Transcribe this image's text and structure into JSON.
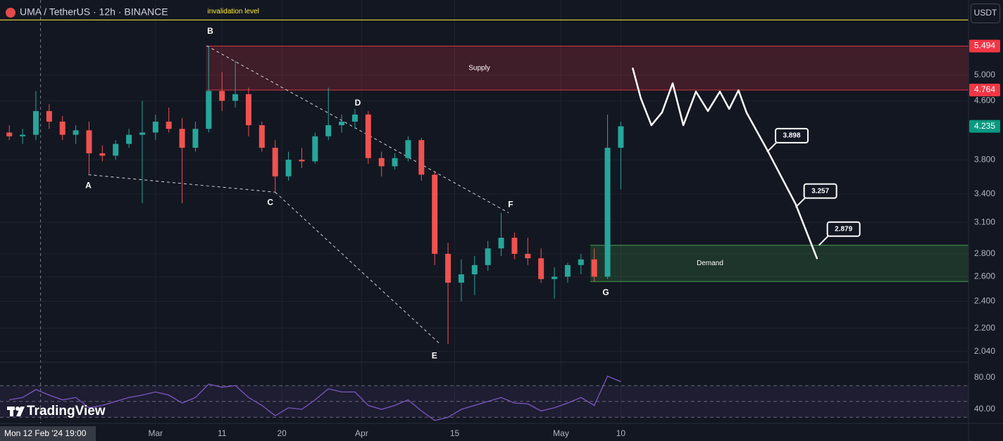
{
  "header": {
    "symbol": "UMA / TetherUS · 12h · BINANCE",
    "currency_button": "USDT",
    "logo": "TradingView",
    "crosshair_label": "Mon 12 Feb '24 19:00"
  },
  "chart_data": {
    "type": "candlestick",
    "log_scale": true,
    "grid": true,
    "up_color": "#26a69a",
    "down_color": "#ef5350",
    "x": [
      7,
      9,
      11,
      13,
      15,
      17,
      19,
      21,
      23,
      25,
      27,
      29,
      31,
      33,
      35,
      37,
      39,
      41,
      43,
      45,
      47,
      49,
      51,
      53,
      55,
      57,
      59,
      61,
      63,
      65,
      67,
      69,
      71,
      73,
      75,
      77,
      79,
      81,
      83,
      85,
      87,
      89,
      91,
      93,
      95,
      97,
      99
    ],
    "values": [
      [
        4.15,
        4.25,
        4.05,
        4.1
      ],
      [
        4.1,
        4.2,
        4.0,
        4.12
      ],
      [
        4.12,
        4.75,
        4.05,
        4.45
      ],
      [
        4.45,
        4.55,
        4.2,
        4.3
      ],
      [
        4.3,
        4.38,
        4.05,
        4.12
      ],
      [
        4.12,
        4.25,
        4.0,
        4.18
      ],
      [
        4.18,
        4.3,
        3.62,
        3.88
      ],
      [
        3.88,
        3.98,
        3.78,
        3.85
      ],
      [
        3.85,
        4.05,
        3.8,
        4.0
      ],
      [
        4.0,
        4.2,
        3.95,
        4.12
      ],
      [
        4.12,
        4.6,
        3.3,
        4.15
      ],
      [
        4.15,
        4.4,
        4.05,
        4.3
      ],
      [
        4.3,
        4.5,
        4.15,
        4.2
      ],
      [
        4.2,
        4.35,
        3.3,
        3.95
      ],
      [
        3.95,
        4.3,
        3.9,
        4.2
      ],
      [
        4.2,
        5.5,
        4.15,
        4.75
      ],
      [
        4.75,
        5.05,
        4.45,
        4.6
      ],
      [
        4.6,
        5.24,
        4.5,
        4.7
      ],
      [
        4.7,
        4.8,
        4.1,
        4.25
      ],
      [
        4.25,
        4.3,
        3.9,
        3.95
      ],
      [
        3.95,
        4.05,
        3.42,
        3.6
      ],
      [
        3.6,
        3.9,
        3.55,
        3.8
      ],
      [
        3.8,
        3.95,
        3.7,
        3.78
      ],
      [
        3.78,
        4.15,
        3.75,
        4.1
      ],
      [
        4.1,
        4.8,
        4.05,
        4.25
      ],
      [
        4.25,
        4.4,
        4.15,
        4.3
      ],
      [
        4.3,
        4.48,
        4.2,
        4.4
      ],
      [
        4.4,
        4.45,
        3.75,
        3.82
      ],
      [
        3.82,
        3.9,
        3.6,
        3.72
      ],
      [
        3.72,
        3.88,
        3.68,
        3.82
      ],
      [
        3.82,
        4.1,
        3.78,
        4.05
      ],
      [
        4.05,
        4.08,
        3.55,
        3.62
      ],
      [
        3.62,
        3.65,
        2.7,
        2.8
      ],
      [
        2.8,
        2.9,
        2.09,
        2.55
      ],
      [
        2.55,
        2.75,
        2.4,
        2.62
      ],
      [
        2.62,
        2.78,
        2.45,
        2.7
      ],
      [
        2.7,
        2.92,
        2.65,
        2.85
      ],
      [
        2.85,
        3.2,
        2.78,
        2.95
      ],
      [
        2.95,
        3.0,
        2.75,
        2.8
      ],
      [
        2.8,
        2.95,
        2.7,
        2.76
      ],
      [
        2.76,
        2.85,
        2.55,
        2.58
      ],
      [
        2.58,
        2.68,
        2.42,
        2.6
      ],
      [
        2.6,
        2.72,
        2.55,
        2.7
      ],
      [
        2.7,
        2.8,
        2.62,
        2.75
      ],
      [
        2.75,
        2.85,
        2.56,
        2.6
      ],
      [
        2.6,
        4.4,
        2.58,
        3.95
      ],
      [
        3.95,
        4.3,
        3.45,
        4.235
      ]
    ],
    "xlim": [
      5.6,
      151.3
    ],
    "xticks": [
      {
        "value": 29,
        "label": "Mar"
      },
      {
        "value": 39,
        "label": "11"
      },
      {
        "value": 48,
        "label": "20"
      },
      {
        "value": 60,
        "label": "Apr"
      },
      {
        "value": 74,
        "label": "15"
      },
      {
        "value": 90,
        "label": "May"
      },
      {
        "value": 99,
        "label": "10"
      }
    ],
    "ylim": [
      1.97,
      6.38
    ],
    "yticks": [
      {
        "value": 2.04,
        "label": "2.040"
      },
      {
        "value": 2.2,
        "label": "2.200"
      },
      {
        "value": 2.4,
        "label": "2.400"
      },
      {
        "value": 2.6,
        "label": "2.600"
      },
      {
        "value": 2.8,
        "label": "2.800"
      },
      {
        "value": 3.1,
        "label": "3.100"
      },
      {
        "value": 3.4,
        "label": "3.400"
      },
      {
        "value": 3.8,
        "label": "3.800"
      },
      {
        "value": 4.6,
        "label": "4.600"
      },
      {
        "value": 5,
        "label": "5.000"
      }
    ],
    "crosshair_x": 11.7,
    "rsi": {
      "color": "#7e57c2",
      "values": [
        52,
        55,
        65,
        58,
        52,
        55,
        42,
        45,
        50,
        55,
        58,
        62,
        58,
        48,
        55,
        72,
        68,
        70,
        55,
        45,
        32,
        42,
        40,
        52,
        66,
        62,
        62,
        45,
        40,
        45,
        52,
        38,
        26,
        30,
        40,
        45,
        50,
        55,
        48,
        47,
        38,
        42,
        48,
        55,
        45,
        82,
        75
      ],
      "ylim": [
        24,
        99.6
      ],
      "yticks": [
        {
          "value": 80,
          "label": "80.00"
        },
        {
          "value": 40,
          "label": "40.00"
        }
      ],
      "levels": [
        70,
        50,
        30
      ]
    },
    "zones": [
      {
        "label": "Supply",
        "top": 5.494,
        "bottom": 4.764,
        "x_start": 36.6,
        "color": "#f23645"
      },
      {
        "label": "Demand",
        "top": 2.879,
        "bottom": 2.56,
        "x_start": 94.4,
        "color": "#4caf50"
      }
    ],
    "invalidation": {
      "label": "invalidation level",
      "value": 5.98,
      "color": "#ffeb3b"
    },
    "wave_points": [
      {
        "label": "A",
        "x": 18.9,
        "y": 3.62
      },
      {
        "label": "B",
        "x": 36.7,
        "y": 5.5
      },
      {
        "label": "C",
        "x": 47.0,
        "y": 3.42
      },
      {
        "label": "D",
        "x": 59.0,
        "y": 4.45
      },
      {
        "label": "E",
        "x": 71.8,
        "y": 2.09
      },
      {
        "label": "F",
        "x": 82.1,
        "y": 3.2
      },
      {
        "label": "G",
        "x": 96.2,
        "y": 2.56
      }
    ],
    "projection": {
      "x": [
        100.8,
        102.0,
        103.6,
        105.2,
        106.8,
        108.4,
        110.3,
        112.1,
        113.9,
        115.3,
        116.7,
        117.9,
        121.1,
        125.3,
        128.5
      ],
      "y": [
        5.11,
        4.64,
        4.25,
        4.43,
        4.87,
        4.25,
        4.74,
        4.45,
        4.74,
        4.48,
        4.76,
        4.43,
        3.91,
        3.29,
        2.76
      ]
    },
    "targets": [
      {
        "value": 3.898,
        "x": 121.0
      },
      {
        "value": 3.257,
        "x": 125.3
      },
      {
        "value": 2.879,
        "x": 128.8
      }
    ]
  }
}
